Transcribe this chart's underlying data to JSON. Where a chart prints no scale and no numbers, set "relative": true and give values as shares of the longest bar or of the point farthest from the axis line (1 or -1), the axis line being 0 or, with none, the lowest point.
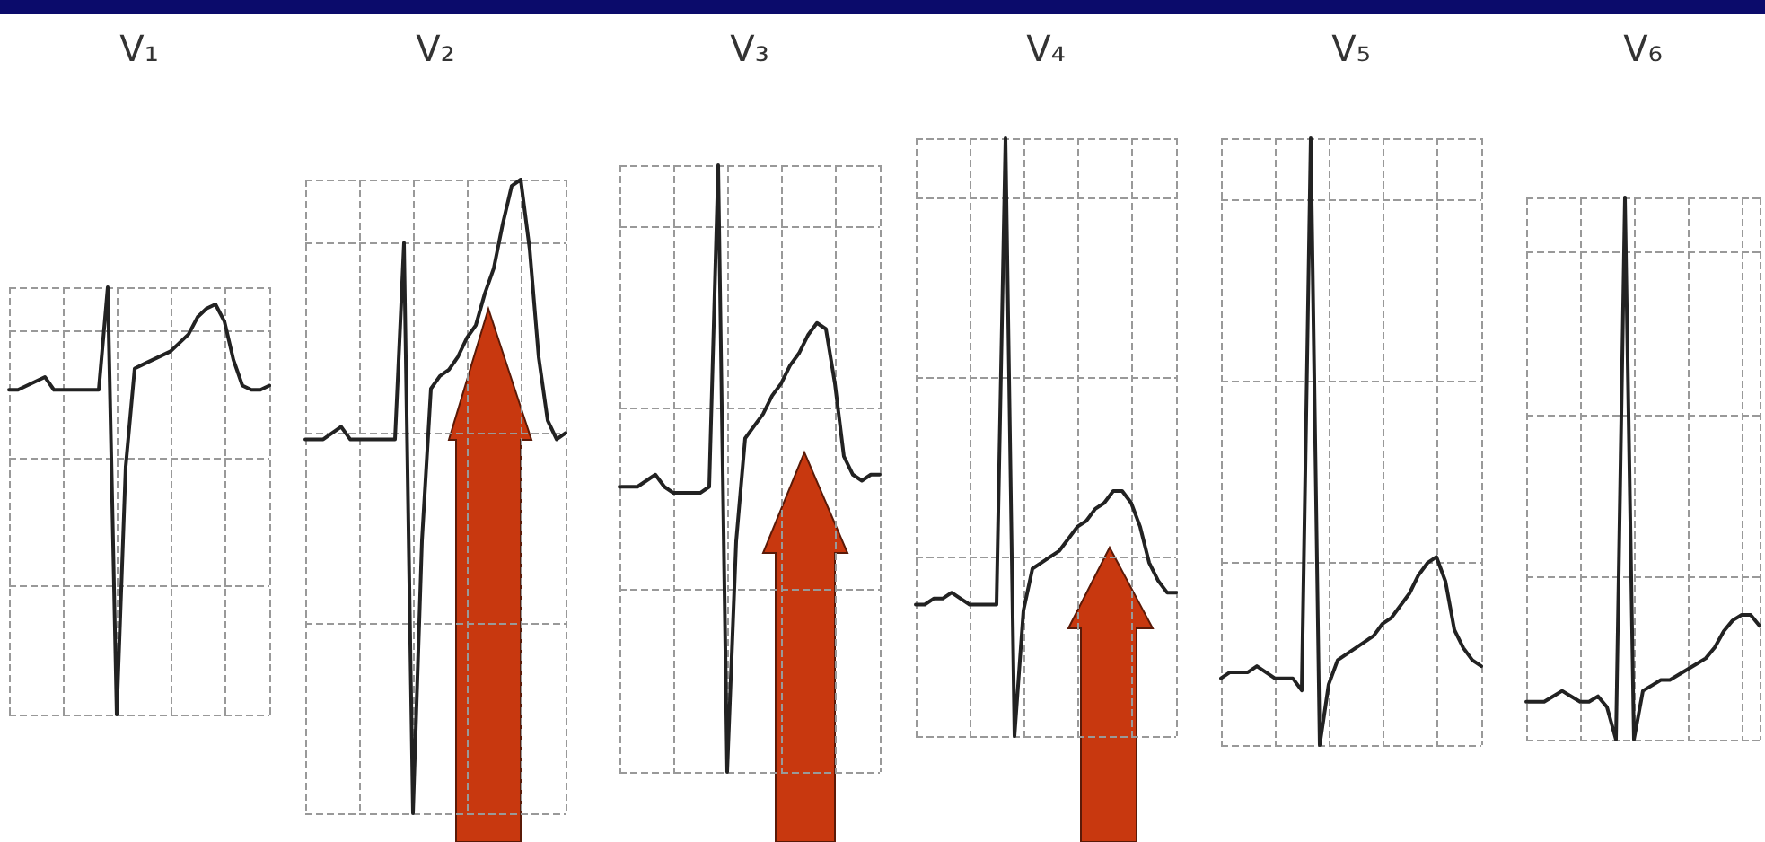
{
  "chart_data": [
    {
      "type": "line",
      "title": "V₁",
      "relative": true,
      "grid": true,
      "marker": "none",
      "color": "#222222",
      "categories": [
        null,
        null,
        null,
        null,
        null,
        null,
        null,
        null,
        null,
        null,
        null,
        null,
        null,
        null,
        null,
        null,
        null,
        null,
        null,
        null,
        null,
        null,
        null,
        null,
        null,
        null,
        null,
        null,
        null,
        null
      ],
      "values": [
        0.76,
        0.76,
        0.77,
        0.78,
        0.79,
        0.76,
        0.76,
        0.76,
        0.76,
        0.76,
        0.76,
        1,
        0,
        0.58,
        0.81,
        0.82,
        0.83,
        0.84,
        0.85,
        0.87,
        0.89,
        0.93,
        0.95,
        0.96,
        0.92,
        0.83,
        0.77,
        0.76,
        0.76,
        0.77
      ]
    },
    {
      "type": "line",
      "title": "V₂",
      "relative": true,
      "grid": true,
      "marker": "none",
      "color": "#222222",
      "categories": [
        null,
        null,
        null,
        null,
        null,
        null,
        null,
        null,
        null,
        null,
        null,
        null,
        null,
        null,
        null,
        null,
        null,
        null,
        null,
        null,
        null,
        null,
        null,
        null,
        null,
        null,
        null,
        null,
        null,
        null
      ],
      "values": [
        0.59,
        0.59,
        0.59,
        0.6,
        0.61,
        0.59,
        0.59,
        0.59,
        0.59,
        0.59,
        0.59,
        0.9,
        0,
        0.43,
        0.67,
        0.69,
        0.7,
        0.72,
        0.75,
        0.77,
        0.82,
        0.86,
        0.93,
        0.99,
        1,
        0.89,
        0.72,
        0.62,
        0.59,
        0.6
      ]
    },
    {
      "type": "line",
      "title": "V₃",
      "relative": true,
      "grid": true,
      "marker": "none",
      "color": "#222222",
      "categories": [
        null,
        null,
        null,
        null,
        null,
        null,
        null,
        null,
        null,
        null,
        null,
        null,
        null,
        null,
        null,
        null,
        null,
        null,
        null,
        null,
        null,
        null,
        null,
        null,
        null,
        null,
        null,
        null,
        null,
        null
      ],
      "values": [
        0.47,
        0.47,
        0.47,
        0.48,
        0.49,
        0.47,
        0.46,
        0.46,
        0.46,
        0.46,
        0.47,
        1,
        0,
        0.38,
        0.55,
        0.57,
        0.59,
        0.62,
        0.64,
        0.67,
        0.69,
        0.72,
        0.74,
        0.73,
        0.64,
        0.52,
        0.49,
        0.48,
        0.49,
        0.49
      ]
    },
    {
      "type": "line",
      "title": "V₄",
      "relative": true,
      "grid": true,
      "marker": "none",
      "color": "#222222",
      "categories": [
        null,
        null,
        null,
        null,
        null,
        null,
        null,
        null,
        null,
        null,
        null,
        null,
        null,
        null,
        null,
        null,
        null,
        null,
        null,
        null,
        null,
        null,
        null,
        null,
        null,
        null,
        null,
        null,
        null,
        null
      ],
      "values": [
        0.22,
        0.22,
        0.23,
        0.23,
        0.24,
        0.23,
        0.22,
        0.22,
        0.22,
        0.22,
        1,
        0,
        0.21,
        0.28,
        0.29,
        0.3,
        0.31,
        0.33,
        0.35,
        0.36,
        0.38,
        0.39,
        0.41,
        0.41,
        0.39,
        0.35,
        0.29,
        0.26,
        0.24,
        0.24
      ]
    },
    {
      "type": "line",
      "title": "V₅",
      "relative": true,
      "grid": true,
      "marker": "none",
      "color": "#222222",
      "categories": [
        null,
        null,
        null,
        null,
        null,
        null,
        null,
        null,
        null,
        null,
        null,
        null,
        null,
        null,
        null,
        null,
        null,
        null,
        null,
        null,
        null,
        null,
        null,
        null,
        null,
        null,
        null,
        null,
        null,
        null
      ],
      "values": [
        0.11,
        0.12,
        0.12,
        0.12,
        0.13,
        0.12,
        0.11,
        0.11,
        0.11,
        0.09,
        1,
        0,
        0.1,
        0.14,
        0.15,
        0.16,
        0.17,
        0.18,
        0.2,
        0.21,
        0.23,
        0.25,
        0.28,
        0.3,
        0.31,
        0.27,
        0.19,
        0.16,
        0.14,
        0.13
      ]
    },
    {
      "type": "line",
      "title": "V₆",
      "relative": true,
      "grid": true,
      "marker": "none",
      "color": "#222222",
      "categories": [
        null,
        null,
        null,
        null,
        null,
        null,
        null,
        null,
        null,
        null,
        null,
        null,
        null,
        null,
        null,
        null,
        null,
        null,
        null,
        null,
        null,
        null,
        null,
        null,
        null,
        null,
        null
      ],
      "values": [
        0.07,
        0.07,
        0.07,
        0.08,
        0.09,
        0.08,
        0.07,
        0.07,
        0.08,
        0.06,
        0,
        1,
        0,
        0.09,
        0.1,
        0.11,
        0.11,
        0.12,
        0.13,
        0.14,
        0.15,
        0.17,
        0.2,
        0.22,
        0.23,
        0.23,
        0.21
      ]
    }
  ]
}
